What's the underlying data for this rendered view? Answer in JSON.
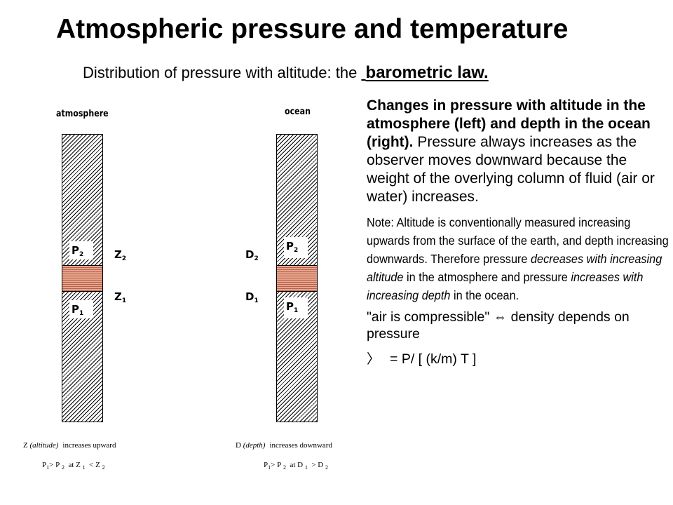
{
  "title": "Atmospheric pressure and temperature",
  "subtitle": {
    "prefix": "Distribution of pressure with altitude:  the ",
    "emphasis": "barometric law."
  },
  "atmosphere": {
    "label": "atmosphere",
    "p_upper": "P",
    "p_upper_sub": "2",
    "p_lower": "P",
    "p_lower_sub": "1",
    "coord_upper": "Z",
    "coord_upper_sub": "2",
    "coord_lower": "Z",
    "coord_lower_sub": "1",
    "caption_var": "Z",
    "caption_italic": "(altitude)",
    "caption_rest": "increases upward",
    "relation": {
      "a": "P",
      "a_sub": "1",
      "gt": "> P",
      "b_sub": "2",
      "at": "at Z",
      "c_sub": "1",
      "op": "< Z",
      "d_sub": "2"
    }
  },
  "ocean": {
    "label": "ocean",
    "p_upper": "P",
    "p_upper_sub": "2",
    "p_lower": "P",
    "p_lower_sub": "1",
    "coord_upper": "D",
    "coord_upper_sub": "2",
    "coord_lower": "D",
    "coord_lower_sub": "1",
    "caption_var": "D",
    "caption_italic": "(depth)",
    "caption_rest": "increases downward",
    "relation": {
      "a": "P",
      "a_sub": "1",
      "gt": "> P",
      "b_sub": "2",
      "at": "at D",
      "c_sub": "1",
      "op": "> D",
      "d_sub": "2"
    }
  },
  "explanation": {
    "bold": "Changes in pressure with altitude in the atmosphere (left) and depth in the ocean (right).",
    "normal": "  Pressure always increases as the observer moves downward because the weight of the overlying column of fluid (air or water) increases."
  },
  "note": {
    "part1": "Note:  Altitude is conventionally measured increasing upwards from the surface of the earth, and depth increasing downwards.  Therefore pressure ",
    "italic1": "decreases with increasing altitude",
    "part2": " in the atmosphere and pressure ",
    "italic2": "increases with increasing depth",
    "part3": " in the ocean."
  },
  "compressible": "\"air is compressible\" ⇔ density depends on pressure",
  "equation": {
    "symbol": "〉",
    "text": "= P/ [ (k/m) T ]"
  },
  "colors": {
    "layer_fill": "#e6a48d",
    "hatch": "#000000"
  }
}
